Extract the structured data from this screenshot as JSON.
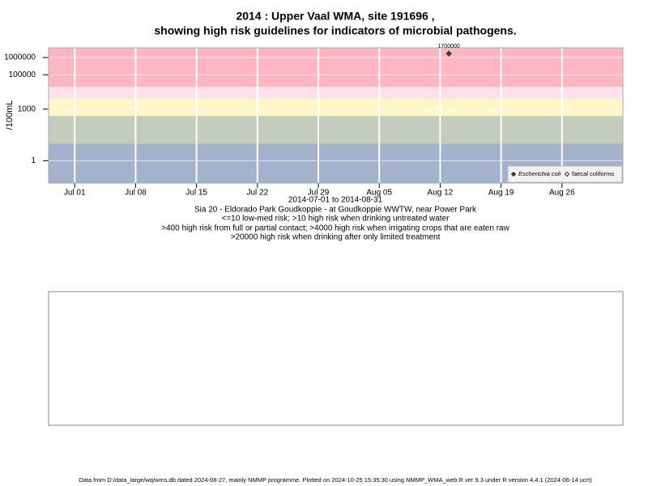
{
  "chart_data": {
    "type": "scatter",
    "title": [
      "2014 : Upper Vaal WMA, site 191696 ,",
      "showing high risk guidelines for indicators of microbial pathogens."
    ],
    "y_label": "/100mL",
    "x_label": "2014-07-01 to 2014-08-31",
    "notes": [
      "Sia 20 - Eldorado Park Goudkoppie - at Goudkoppie WWTW, near Power Park",
      "<=10 low-med risk; >10 high risk when drinking untreated water",
      ">400 high risk from full or partial contact; >4000 high risk when irrigating crops that are eaten raw",
      ">20000 high risk when drinking after only limited treatment"
    ],
    "footer": "Data from D:/data_large/wq/wms.db dated 2024-08-27, mainly NMMP programme. Plotted on 2024-10-25 15:35:30 using NMMP_WMA_web.R ver 9.3 under R version 4.4.1 (2024-06-14 ucrt)",
    "y_log": true,
    "grid": true,
    "legend_position": "bottom-right",
    "xlim": [
      "2014-06-28",
      "2014-09-02"
    ],
    "xticks": [
      {
        "value": "2014-07-01",
        "label": "Jul 01"
      },
      {
        "value": "2014-07-08",
        "label": "Jul 08"
      },
      {
        "value": "2014-07-15",
        "label": "Jul 15"
      },
      {
        "value": "2014-07-22",
        "label": "Jul 22"
      },
      {
        "value": "2014-07-29",
        "label": "Jul 29"
      },
      {
        "value": "2014-08-05",
        "label": "Aug 05"
      },
      {
        "value": "2014-08-12",
        "label": "Aug 12"
      },
      {
        "value": "2014-08-19",
        "label": "Aug 19"
      },
      {
        "value": "2014-08-26",
        "label": "Aug 26"
      }
    ],
    "ylim": [
      0.05,
      3700000
    ],
    "yticks": [
      1,
      1000,
      100000,
      1000000
    ],
    "risk_bands": [
      {
        "upper": 10,
        "color": "#a3b3cd"
      },
      {
        "upper": 400,
        "color": "#c3cbbf"
      },
      {
        "upper": 4000,
        "color": "#fdf6c6"
      },
      {
        "upper": 20000,
        "color": "#fde0ec"
      },
      {
        "upper": null,
        "color": "#ffb6c2"
      }
    ],
    "series": [
      {
        "name": "Escherichia coli",
        "color": "#333333",
        "marker": "filled-diamond",
        "x": [
          "2014-08-13"
        ],
        "values": [
          1700000
        ],
        "value_labels": [
          "1700000"
        ]
      },
      {
        "name": "faecal coliforms",
        "color": "#333333",
        "marker": "open-diamond",
        "x": [],
        "values": []
      }
    ]
  }
}
